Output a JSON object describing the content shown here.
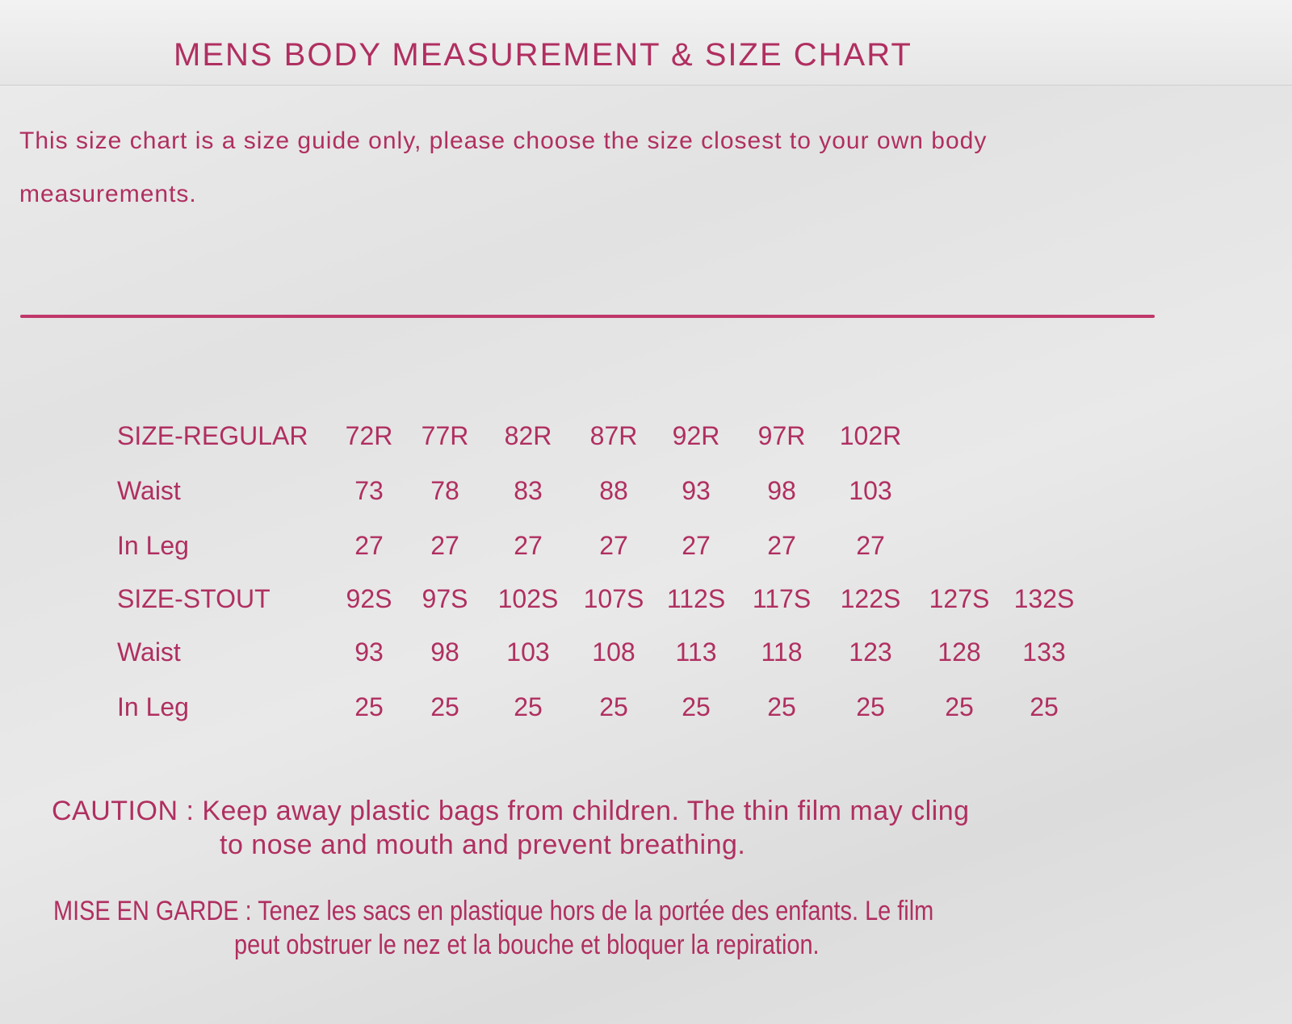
{
  "title": "MENS BODY MEASUREMENT & SIZE CHART",
  "intro": {
    "line1": "This size chart is a size guide only, please choose the size closest to your own body",
    "line2": "measurements."
  },
  "table": {
    "rows": [
      {
        "label": "SIZE-REGULAR",
        "values": [
          "72R",
          "77R",
          "82R",
          "87R",
          "92R",
          "97R",
          "102R"
        ]
      },
      {
        "label": "Waist",
        "values": [
          "73",
          "78",
          "83",
          "88",
          "93",
          "98",
          "103"
        ]
      },
      {
        "label": "In Leg",
        "values": [
          "27",
          "27",
          "27",
          "27",
          "27",
          "27",
          "27"
        ]
      },
      {
        "label": "SIZE-STOUT",
        "values": [
          "92S",
          "97S",
          "102S",
          "107S",
          "112S",
          "117S",
          "122S",
          "127S",
          "132S"
        ]
      },
      {
        "label": "Waist",
        "values": [
          "93",
          "98",
          "103",
          "108",
          "113",
          "118",
          "123",
          "128",
          "133"
        ]
      },
      {
        "label": "In Leg",
        "values": [
          "25",
          "25",
          "25",
          "25",
          "25",
          "25",
          "25",
          "25",
          "25"
        ]
      }
    ]
  },
  "caution": {
    "line1": "CAUTION : Keep away plastic bags from children. The thin film may cling",
    "line2": "to nose and mouth and prevent breathing."
  },
  "mise_en_garde": {
    "line1": "MISE EN GARDE : Tenez les sacs en plastique hors de la portée des enfants. Le film",
    "line2": "peut obstruer le nez et la bouche et bloquer la repiration."
  },
  "colors": {
    "ink": "#b02f60",
    "background": "#e4e4e4"
  }
}
